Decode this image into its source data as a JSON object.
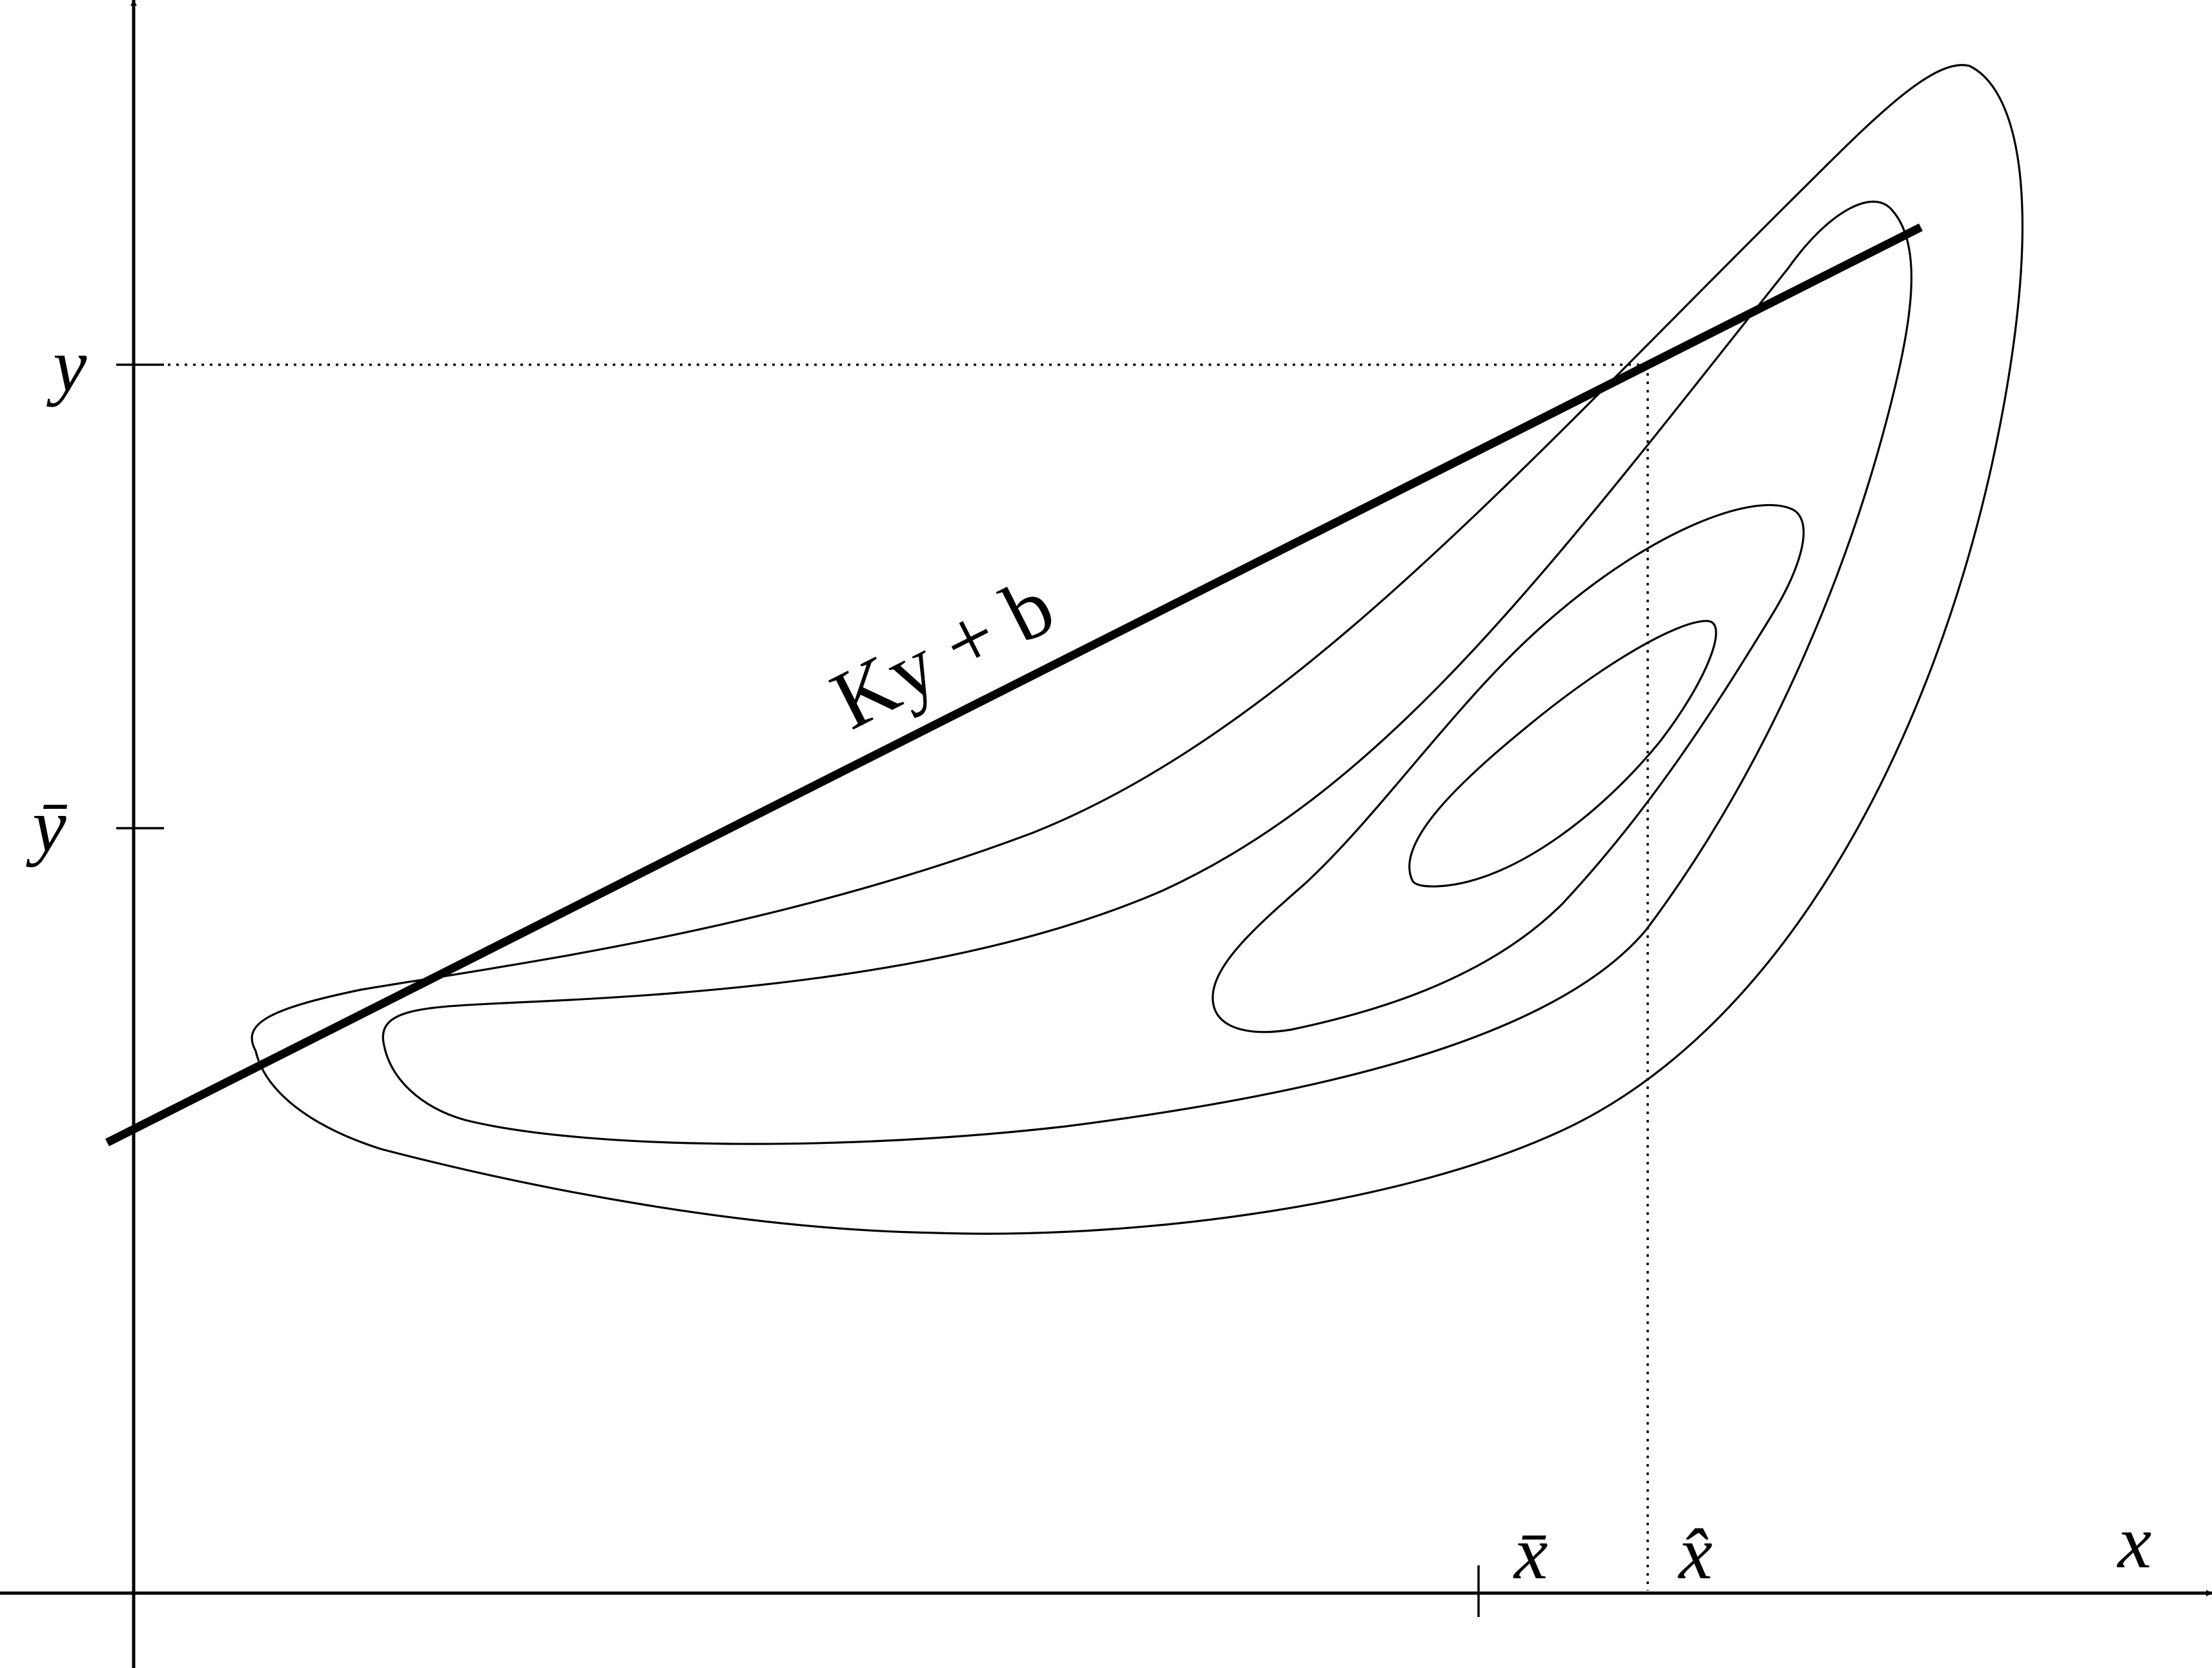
{
  "axes": {
    "x_label": "x",
    "y_label": "y"
  },
  "ticks": {
    "y_observed": "y",
    "y_mean": "ȳ",
    "x_mean": "x̄",
    "x_estimate": "x̂"
  },
  "regression_line": {
    "label": "Ky + b"
  },
  "contours": {
    "count": 4
  },
  "colors": {
    "ink": "#000000",
    "background": "#ffffff"
  }
}
